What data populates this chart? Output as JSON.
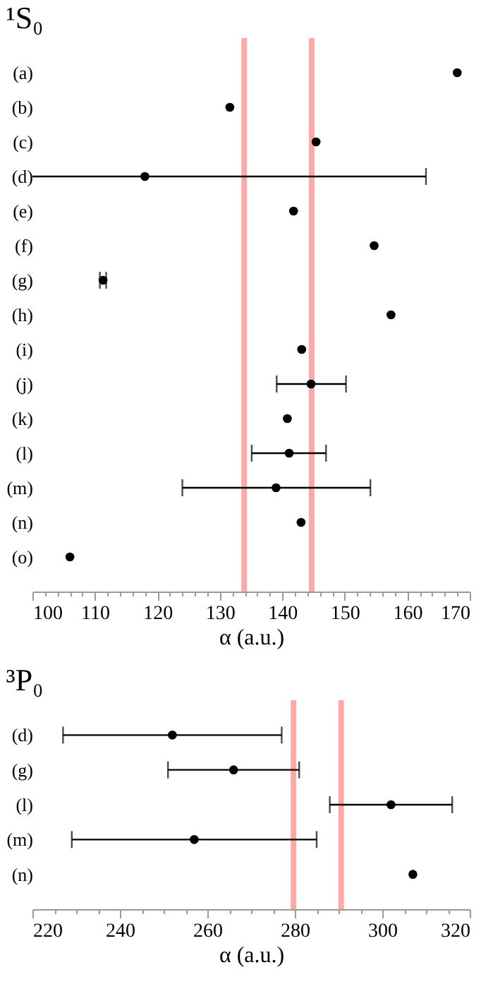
{
  "chart_data": [
    {
      "type": "scatter",
      "title": "¹S₀",
      "xlabel": "α (a.u.)",
      "orientation": "horizontal",
      "marker": "circle",
      "categories": [
        "(a)",
        "(b)",
        "(c)",
        "(d)",
        "(e)",
        "(f)",
        "(g)",
        "(h)",
        "(i)",
        "(j)",
        "(k)",
        "(l)",
        "(m)",
        "(n)",
        "(o)"
      ],
      "series": [
        {
          "color": "#000000",
          "values": [
            168.0,
            131.6,
            145.4,
            118.0,
            141.8,
            154.7,
            111.3,
            157.4,
            143.1,
            144.6,
            140.8,
            141.1,
            139.0,
            143.0,
            106.0
          ],
          "errors": [
            null,
            null,
            null,
            [
              100,
              163
            ],
            null,
            null,
            0.5,
            null,
            null,
            [
              139.1,
              150.2
            ],
            null,
            [
              135.1,
              147.0
            ],
            [
              124.0,
              154.1
            ],
            null,
            null
          ]
        }
      ],
      "xlim": [
        100,
        170
      ],
      "xticks": [
        100,
        {
          "value": 102,
          "label": null
        },
        {
          "value": 104,
          "label": null
        },
        {
          "value": 106,
          "label": null
        },
        {
          "value": 108,
          "label": null
        },
        110,
        {
          "value": 112,
          "label": null
        },
        {
          "value": 114,
          "label": null
        },
        {
          "value": 116,
          "label": null
        },
        {
          "value": 118,
          "label": null
        },
        120,
        {
          "value": 122,
          "label": null
        },
        {
          "value": 124,
          "label": null
        },
        {
          "value": 126,
          "label": null
        },
        {
          "value": 128,
          "label": null
        },
        130,
        {
          "value": 132,
          "label": null
        },
        {
          "value": 134,
          "label": null
        },
        {
          "value": 136,
          "label": null
        },
        {
          "value": 138,
          "label": null
        },
        140,
        {
          "value": 142,
          "label": null
        },
        {
          "value": 144,
          "label": null
        },
        {
          "value": 146,
          "label": null
        },
        {
          "value": 148,
          "label": null
        },
        150,
        {
          "value": 152,
          "label": null
        },
        {
          "value": 154,
          "label": null
        },
        {
          "value": 156,
          "label": null
        },
        {
          "value": 158,
          "label": null
        },
        160,
        {
          "value": 162,
          "label": null
        },
        {
          "value": 164,
          "label": null
        },
        {
          "value": 166,
          "label": null
        },
        {
          "value": 168,
          "label": null
        },
        170
      ],
      "ref_lines": [
        {
          "axis": "x",
          "value": 133.9,
          "color": "#ffa8a8"
        },
        {
          "axis": "x",
          "value": 144.7,
          "color": "#ffa8a8"
        }
      ]
    },
    {
      "type": "scatter",
      "title": "³P₀",
      "xlabel": "α (a.u.)",
      "orientation": "horizontal",
      "marker": "circle",
      "categories": [
        "(d)",
        "(g)",
        "(l)",
        "(m)",
        "(n)"
      ],
      "series": [
        {
          "color": "#000000",
          "values": [
            252,
            266,
            302,
            257,
            307
          ],
          "errors": [
            25,
            15,
            14,
            28,
            null
          ]
        }
      ],
      "xlim": [
        220,
        320
      ],
      "xticks": [
        220,
        {
          "value": 225,
          "label": null
        },
        {
          "value": 230,
          "label": null
        },
        {
          "value": 235,
          "label": null
        },
        240,
        {
          "value": 245,
          "label": null
        },
        {
          "value": 250,
          "label": null
        },
        {
          "value": 255,
          "label": null
        },
        260,
        {
          "value": 265,
          "label": null
        },
        {
          "value": 270,
          "label": null
        },
        {
          "value": 275,
          "label": null
        },
        280,
        {
          "value": 285,
          "label": null
        },
        {
          "value": 290,
          "label": null
        },
        {
          "value": 295,
          "label": null
        },
        300,
        {
          "value": 305,
          "label": null
        },
        {
          "value": 310,
          "label": null
        },
        {
          "value": 315,
          "label": null
        },
        320
      ],
      "ref_lines": [
        {
          "axis": "x",
          "value": 279.7,
          "color": "#ffa8a8"
        },
        {
          "axis": "x",
          "value": 290.6,
          "color": "#ffa8a8"
        }
      ]
    }
  ]
}
